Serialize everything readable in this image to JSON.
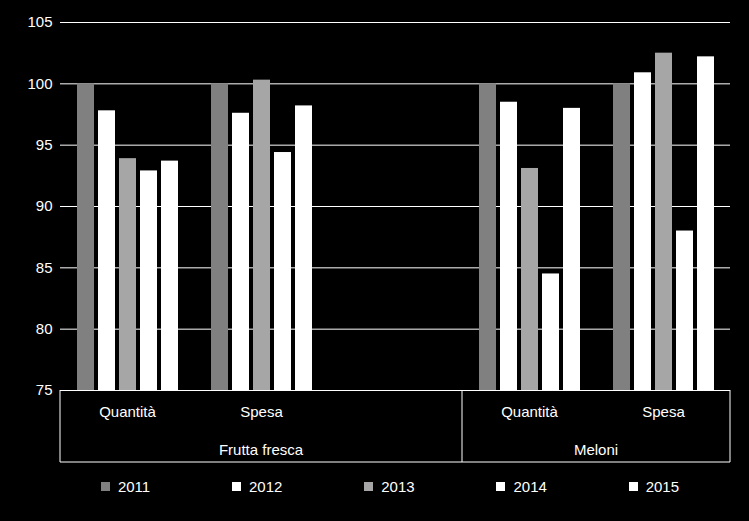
{
  "chart_data": {
    "type": "bar",
    "categories": [
      "Quantità",
      "Spesa",
      null,
      "Quantità",
      "Spesa"
    ],
    "groups": [
      "Frutta fresca",
      "Frutta fresca",
      "Frutta fresca",
      "Meloni",
      "Meloni"
    ],
    "series": [
      {
        "name": "2011",
        "color": "#808080",
        "values": [
          100,
          100,
          null,
          100,
          100
        ]
      },
      {
        "name": "2012",
        "color": "#ffffff",
        "values": [
          97.8,
          97.6,
          null,
          98.5,
          100.9
        ]
      },
      {
        "name": "2013",
        "color": "#a6a6a6",
        "values": [
          93.9,
          100.3,
          null,
          93.1,
          102.5
        ]
      },
      {
        "name": "2014",
        "color": "#ffffff",
        "values": [
          92.9,
          94.4,
          null,
          84.5,
          88.0
        ]
      },
      {
        "name": "2015",
        "color": "#ffffff",
        "values": [
          93.7,
          98.2,
          null,
          98.0,
          102.2
        ]
      }
    ],
    "ylim": [
      75,
      105
    ],
    "yticks": [
      75,
      80,
      85,
      90,
      95,
      100,
      105
    ],
    "grid": true,
    "legend": "bottom"
  }
}
